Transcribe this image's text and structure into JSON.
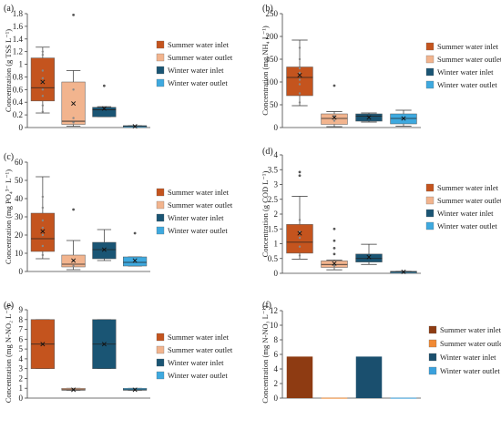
{
  "figure": {
    "colors": {
      "summer_inlet": "#c4541e",
      "summer_outlet": "#f2b48e",
      "winter_inlet": "#1a5574",
      "winter_outlet": "#3ea9df",
      "f_summer_inlet": "#8e3b12",
      "f_summer_outlet": "#f18a34",
      "f_winter_inlet": "#1a4f6e",
      "f_winter_outlet": "#3aa1dd"
    },
    "legend": [
      "Summer water inlet",
      "Summer water outlet",
      "Winter water inlet",
      "Winter water outlet"
    ]
  },
  "chart_data": [
    {
      "label": "(a)",
      "type": "box",
      "ylabel": "Concentration (g TSS L⁻¹)",
      "ylim": [
        0,
        1.8
      ],
      "yticks": [
        "0",
        "0.2",
        "0.4",
        "0.6",
        "0.8",
        "1",
        "1.2",
        "1.4",
        "1.6",
        "1.8"
      ],
      "series": [
        {
          "name": "Summer water inlet",
          "min": 0.23,
          "q1": 0.42,
          "median": 0.63,
          "q3": 1.1,
          "max": 1.27,
          "mean": 0.72,
          "points": [
            0.25,
            0.35,
            0.5,
            0.6,
            0.72,
            0.78,
            0.9,
            1.15,
            1.2
          ],
          "outliers": []
        },
        {
          "name": "Summer water outlet",
          "min": 0.02,
          "q1": 0.05,
          "median": 0.1,
          "q3": 0.72,
          "max": 0.9,
          "mean": 0.38,
          "points": [
            0.08,
            0.15,
            0.6
          ],
          "outliers": [
            1.78
          ]
        },
        {
          "name": "Winter water inlet",
          "min": 0.17,
          "q1": 0.17,
          "median": 0.28,
          "q3": 0.32,
          "max": 0.33,
          "mean": 0.3,
          "points": [],
          "outliers": [
            0.66
          ]
        },
        {
          "name": "Winter water outlet",
          "min": 0.01,
          "q1": 0.01,
          "median": 0.02,
          "q3": 0.03,
          "max": 0.03,
          "mean": 0.02,
          "points": [],
          "outliers": []
        }
      ]
    },
    {
      "label": "(b)",
      "type": "box",
      "ylabel": "Concentration (mg NH₄ L⁻¹)",
      "ylim": [
        0,
        250
      ],
      "yticks": [
        "0",
        "50",
        "100",
        "150",
        "200",
        "250"
      ],
      "series": [
        {
          "name": "Summer water inlet",
          "min": 48,
          "q1": 70,
          "median": 110,
          "q3": 133,
          "max": 192,
          "mean": 115,
          "points": [
            55,
            75,
            95,
            105,
            120,
            130,
            150,
            175
          ],
          "outliers": []
        },
        {
          "name": "Summer water outlet",
          "min": 2,
          "q1": 7,
          "median": 20,
          "q3": 30,
          "max": 35,
          "mean": 22,
          "points": [
            15,
            25
          ],
          "outliers": [
            92
          ]
        },
        {
          "name": "Winter water inlet",
          "min": 12,
          "q1": 14,
          "median": 25,
          "q3": 30,
          "max": 32,
          "mean": 22,
          "points": [],
          "outliers": []
        },
        {
          "name": "Winter water outlet",
          "min": 3,
          "q1": 8,
          "median": 20,
          "q3": 30,
          "max": 38,
          "mean": 20,
          "points": [],
          "outliers": []
        }
      ]
    },
    {
      "label": "(c)",
      "type": "box",
      "ylabel": "Concentration (mg PO₄³⁻ L⁻¹)",
      "ylim": [
        0,
        60
      ],
      "yticks": [
        "0",
        "10",
        "20",
        "30",
        "40",
        "50",
        "60"
      ],
      "series": [
        {
          "name": "Summer water inlet",
          "min": 7,
          "q1": 11,
          "median": 18,
          "q3": 32,
          "max": 52,
          "mean": 22,
          "points": [
            9,
            14,
            20,
            24,
            28,
            35,
            41
          ],
          "outliers": []
        },
        {
          "name": "Summer water outlet",
          "min": 1,
          "q1": 2.5,
          "median": 4,
          "q3": 9,
          "max": 17,
          "mean": 6,
          "points": [
            3,
            6
          ],
          "outliers": [
            34
          ]
        },
        {
          "name": "Winter water inlet",
          "min": 6,
          "q1": 7,
          "median": 12,
          "q3": 16,
          "max": 23,
          "mean": 12,
          "points": [],
          "outliers": []
        },
        {
          "name": "Winter water outlet",
          "min": 3,
          "q1": 3,
          "median": 5,
          "q3": 8,
          "max": 8,
          "mean": 6,
          "points": [],
          "outliers": [
            21
          ]
        }
      ]
    },
    {
      "label": "(d)",
      "type": "box",
      "ylabel": "Concentration (g COD L⁻¹)",
      "ylim": [
        0,
        4
      ],
      "yticks": [
        "0",
        "0.5",
        "1",
        "1.5",
        "2",
        "2.5",
        "3",
        "3.5",
        "4"
      ],
      "series": [
        {
          "name": "Summer water inlet",
          "min": 0.48,
          "q1": 0.68,
          "median": 1.05,
          "q3": 1.65,
          "max": 2.6,
          "mean": 1.35,
          "points": [
            0.6,
            0.9,
            1.2,
            1.4,
            1.8
          ],
          "outliers": [
            3.3,
            3.42
          ]
        },
        {
          "name": "Summer water outlet",
          "min": 0.12,
          "q1": 0.2,
          "median": 0.3,
          "q3": 0.42,
          "max": 0.45,
          "mean": 0.33,
          "points": [
            0.25
          ],
          "outliers": [
            0.65,
            0.85,
            1.1,
            1.5
          ]
        },
        {
          "name": "Winter water inlet",
          "min": 0.3,
          "q1": 0.38,
          "median": 0.5,
          "q3": 0.65,
          "max": 0.98,
          "mean": 0.55,
          "points": [],
          "outliers": []
        },
        {
          "name": "Winter water outlet",
          "min": 0.02,
          "q1": 0.03,
          "median": 0.05,
          "q3": 0.07,
          "max": 0.07,
          "mean": 0.05,
          "points": [],
          "outliers": []
        }
      ]
    },
    {
      "label": "(e)",
      "type": "box",
      "ylabel": "Concentration (mg N-NO₂ L⁻¹)",
      "ylim": [
        0,
        9
      ],
      "yticks": [
        "0",
        "1",
        "2",
        "3",
        "4",
        "5",
        "6",
        "7",
        "8",
        "9"
      ],
      "series": [
        {
          "name": "Summer water inlet",
          "min": 3,
          "q1": 3,
          "median": 5.5,
          "q3": 8,
          "max": 8,
          "mean": 5.5,
          "points": [],
          "outliers": []
        },
        {
          "name": "Summer water outlet",
          "min": 0.8,
          "q1": 0.8,
          "median": 0.85,
          "q3": 1.0,
          "max": 1.0,
          "mean": 0.85,
          "points": [],
          "outliers": []
        },
        {
          "name": "Winter water inlet",
          "min": 3,
          "q1": 3,
          "median": 5.5,
          "q3": 8,
          "max": 8,
          "mean": 5.5,
          "points": [],
          "outliers": []
        },
        {
          "name": "Winter water outlet",
          "min": 0.8,
          "q1": 0.8,
          "median": 0.85,
          "q3": 1.0,
          "max": 1.0,
          "mean": 0.85,
          "points": [],
          "outliers": []
        }
      ]
    },
    {
      "label": "(f)",
      "type": "bar",
      "ylabel": "Concentration (mg N-NO₃ L⁻¹)",
      "ylim": [
        0,
        12
      ],
      "yticks": [
        "0",
        "2",
        "4",
        "6",
        "8",
        "10",
        "12"
      ],
      "categories": [
        "Summer water inlet",
        "Summer water outlet",
        "Winter water inlet",
        "Winter water outlet"
      ],
      "values": [
        5.7,
        0.05,
        5.7,
        0.05
      ]
    }
  ]
}
